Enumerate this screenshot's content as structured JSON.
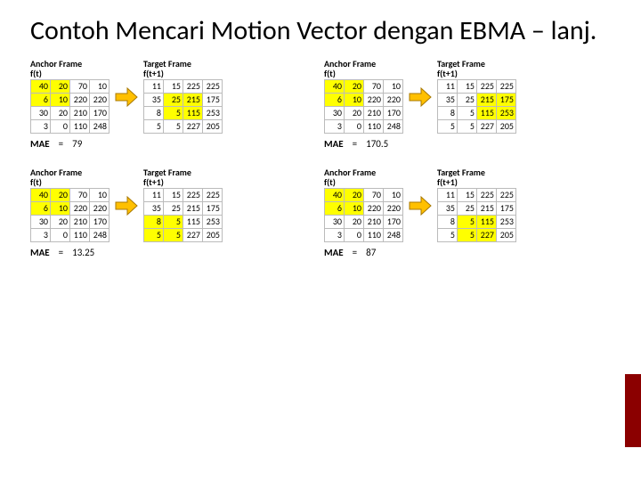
{
  "title": "Contoh Mencari Motion Vector dengan EBMA – lanj.",
  "labels": {
    "anchor": "Anchor Frame",
    "target": "Target Frame",
    "ft": "f(t)",
    "ft1": "f(t+1)",
    "mae": "MAE",
    "eq": "="
  },
  "colors": {
    "highlight": "#ffff00",
    "grid_border": "#bbbbbb",
    "accent": "#8b0000",
    "arrow_fill": "#ffc000",
    "arrow_stroke": "#a87800"
  },
  "blocks": [
    {
      "mae": "79",
      "anchor": {
        "rows": [
          [
            {
              "v": 40,
              "hl": true
            },
            {
              "v": 20,
              "hl": true
            },
            {
              "v": 70
            },
            {
              "v": 10
            }
          ],
          [
            {
              "v": 6,
              "hl": true
            },
            {
              "v": 10,
              "hl": true
            },
            {
              "v": 220
            },
            {
              "v": 220
            }
          ],
          [
            {
              "v": 30
            },
            {
              "v": 20
            },
            {
              "v": 210
            },
            {
              "v": 170
            }
          ],
          [
            {
              "v": 3
            },
            {
              "v": 0
            },
            {
              "v": 110
            },
            {
              "v": 248
            }
          ]
        ]
      },
      "target": {
        "rows": [
          [
            {
              "v": 11
            },
            {
              "v": 15
            },
            {
              "v": 225
            },
            {
              "v": 225
            }
          ],
          [
            {
              "v": 35
            },
            {
              "v": 25,
              "hl": true
            },
            {
              "v": 215,
              "hl": true
            },
            {
              "v": 175
            }
          ],
          [
            {
              "v": 8
            },
            {
              "v": 5,
              "hl": true
            },
            {
              "v": 115,
              "hl": true
            },
            {
              "v": 253
            }
          ],
          [
            {
              "v": 5
            },
            {
              "v": 5
            },
            {
              "v": 227
            },
            {
              "v": 205
            }
          ]
        ]
      }
    },
    {
      "mae": "170.5",
      "anchor": {
        "rows": [
          [
            {
              "v": 40,
              "hl": true
            },
            {
              "v": 20,
              "hl": true
            },
            {
              "v": 70
            },
            {
              "v": 10
            }
          ],
          [
            {
              "v": 6,
              "hl": true
            },
            {
              "v": 10,
              "hl": true
            },
            {
              "v": 220
            },
            {
              "v": 220
            }
          ],
          [
            {
              "v": 30
            },
            {
              "v": 20
            },
            {
              "v": 210
            },
            {
              "v": 170
            }
          ],
          [
            {
              "v": 3
            },
            {
              "v": 0
            },
            {
              "v": 110
            },
            {
              "v": 248
            }
          ]
        ]
      },
      "target": {
        "rows": [
          [
            {
              "v": 11
            },
            {
              "v": 15
            },
            {
              "v": 225
            },
            {
              "v": 225
            }
          ],
          [
            {
              "v": 35
            },
            {
              "v": 25
            },
            {
              "v": 215,
              "hl": true
            },
            {
              "v": 175,
              "hl": true
            }
          ],
          [
            {
              "v": 8
            },
            {
              "v": 5
            },
            {
              "v": 115,
              "hl": true
            },
            {
              "v": 253,
              "hl": true
            }
          ],
          [
            {
              "v": 5
            },
            {
              "v": 5
            },
            {
              "v": 227
            },
            {
              "v": 205
            }
          ]
        ]
      }
    },
    {
      "mae": "13.25",
      "anchor": {
        "rows": [
          [
            {
              "v": 40,
              "hl": true
            },
            {
              "v": 20,
              "hl": true
            },
            {
              "v": 70
            },
            {
              "v": 10
            }
          ],
          [
            {
              "v": 6,
              "hl": true
            },
            {
              "v": 10,
              "hl": true
            },
            {
              "v": 220
            },
            {
              "v": 220
            }
          ],
          [
            {
              "v": 30
            },
            {
              "v": 20
            },
            {
              "v": 210
            },
            {
              "v": 170
            }
          ],
          [
            {
              "v": 3
            },
            {
              "v": 0
            },
            {
              "v": 110
            },
            {
              "v": 248
            }
          ]
        ]
      },
      "target": {
        "rows": [
          [
            {
              "v": 11
            },
            {
              "v": 15
            },
            {
              "v": 225
            },
            {
              "v": 225
            }
          ],
          [
            {
              "v": 35
            },
            {
              "v": 25
            },
            {
              "v": 215
            },
            {
              "v": 175
            }
          ],
          [
            {
              "v": 8,
              "hl": true
            },
            {
              "v": 5,
              "hl": true
            },
            {
              "v": 115
            },
            {
              "v": 253
            }
          ],
          [
            {
              "v": 5,
              "hl": true
            },
            {
              "v": 5,
              "hl": true
            },
            {
              "v": 227
            },
            {
              "v": 205
            }
          ]
        ]
      }
    },
    {
      "mae": "87",
      "anchor": {
        "rows": [
          [
            {
              "v": 40,
              "hl": true
            },
            {
              "v": 20,
              "hl": true
            },
            {
              "v": 70
            },
            {
              "v": 10
            }
          ],
          [
            {
              "v": 6,
              "hl": true
            },
            {
              "v": 10,
              "hl": true
            },
            {
              "v": 220
            },
            {
              "v": 220
            }
          ],
          [
            {
              "v": 30
            },
            {
              "v": 20
            },
            {
              "v": 210
            },
            {
              "v": 170
            }
          ],
          [
            {
              "v": 3
            },
            {
              "v": 0
            },
            {
              "v": 110
            },
            {
              "v": 248
            }
          ]
        ]
      },
      "target": {
        "rows": [
          [
            {
              "v": 11
            },
            {
              "v": 15
            },
            {
              "v": 225
            },
            {
              "v": 225
            }
          ],
          [
            {
              "v": 35
            },
            {
              "v": 25
            },
            {
              "v": 215
            },
            {
              "v": 175
            }
          ],
          [
            {
              "v": 8
            },
            {
              "v": 5,
              "hl": true
            },
            {
              "v": 115,
              "hl": true
            },
            {
              "v": 253
            }
          ],
          [
            {
              "v": 5
            },
            {
              "v": 5,
              "hl": true
            },
            {
              "v": 227,
              "hl": true
            },
            {
              "v": 205
            }
          ]
        ]
      }
    }
  ]
}
